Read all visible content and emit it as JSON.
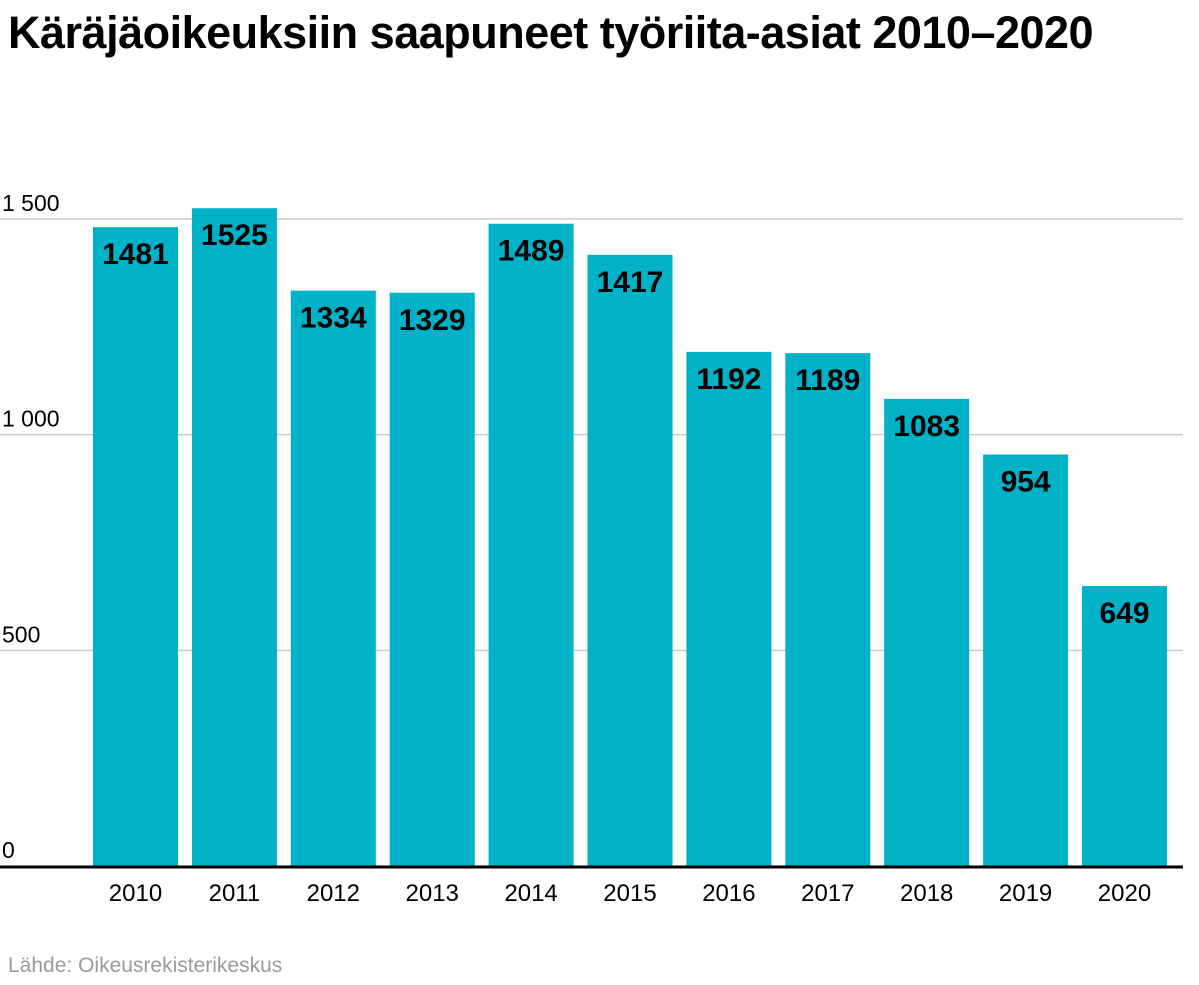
{
  "chart_data": {
    "type": "bar",
    "title": "Käräjäoikeuksiin saapuneet työriita-asiat 2010–2020",
    "categories": [
      "2010",
      "2011",
      "2012",
      "2013",
      "2014",
      "2015",
      "2016",
      "2017",
      "2018",
      "2019",
      "2020"
    ],
    "values": [
      1481,
      1525,
      1334,
      1329,
      1489,
      1417,
      1192,
      1189,
      1083,
      954,
      649
    ],
    "yticks": [
      0,
      500,
      1000,
      1500
    ],
    "ytick_labels": [
      "0",
      "500",
      "1 000",
      "1 500"
    ],
    "ylim": [
      0,
      1500
    ],
    "grid": true,
    "xlabel": "",
    "ylabel": "",
    "bar_color": "#00b2c8",
    "grid_color": "#cccccc",
    "axis_color": "#000000"
  },
  "source": "Lähde: Oikeusrekisterikeskus"
}
